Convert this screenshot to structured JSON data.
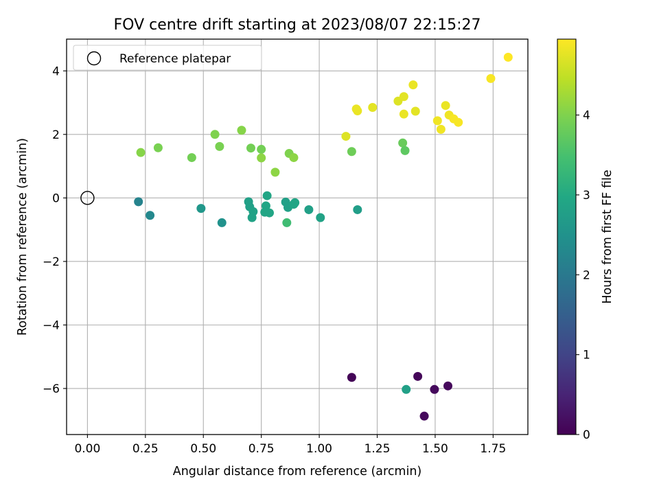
{
  "chart_data": {
    "type": "scatter",
    "title": "FOV centre drift starting at 2023/08/07 22:15:27",
    "xlabel": "Angular distance from reference (arcmin)",
    "ylabel": "Rotation from reference (arcmin)",
    "xlim": [
      -0.09,
      1.9
    ],
    "ylim": [
      -7.45,
      5.0
    ],
    "xticks": [
      "0.00",
      "0.25",
      "0.50",
      "0.75",
      "1.00",
      "1.25",
      "1.50",
      "1.75"
    ],
    "xtick_values": [
      0.0,
      0.25,
      0.5,
      0.75,
      1.0,
      1.25,
      1.5,
      1.75
    ],
    "yticks": [
      "−6",
      "−4",
      "−2",
      "0",
      "2",
      "4"
    ],
    "ytick_values": [
      -6,
      -4,
      -2,
      0,
      2,
      4
    ],
    "grid": true,
    "legend": {
      "placement": "top-left",
      "label": "Reference platepar"
    },
    "reference_point": {
      "x": 0.0,
      "y": 0.0
    },
    "colorbar": {
      "label": "Hours from first FF file",
      "colormap": "viridis",
      "range": [
        0,
        4.95
      ],
      "ticks": [
        "0",
        "1",
        "2",
        "3",
        "4"
      ],
      "tick_values": [
        0,
        1,
        2,
        3,
        4
      ]
    },
    "points": [
      {
        "x": 1.14,
        "y": -5.65,
        "t": 0.05
      },
      {
        "x": 1.425,
        "y": -5.62,
        "t": 0.08
      },
      {
        "x": 1.555,
        "y": -5.92,
        "t": 0.1
      },
      {
        "x": 1.497,
        "y": -6.03,
        "t": 0.12
      },
      {
        "x": 1.453,
        "y": -6.87,
        "t": 0.12
      },
      {
        "x": 1.375,
        "y": -6.03,
        "t": 2.8
      },
      {
        "x": 0.22,
        "y": -0.12,
        "t": 2.2
      },
      {
        "x": 0.27,
        "y": -0.55,
        "t": 2.3
      },
      {
        "x": 0.49,
        "y": -0.33,
        "t": 2.6
      },
      {
        "x": 0.58,
        "y": -0.78,
        "t": 2.5
      },
      {
        "x": 0.695,
        "y": -0.12,
        "t": 2.8
      },
      {
        "x": 0.7,
        "y": -0.28,
        "t": 2.8
      },
      {
        "x": 0.715,
        "y": -0.43,
        "t": 2.85
      },
      {
        "x": 0.71,
        "y": -0.62,
        "t": 2.85
      },
      {
        "x": 0.77,
        "y": -0.25,
        "t": 2.9
      },
      {
        "x": 0.765,
        "y": -0.45,
        "t": 2.9
      },
      {
        "x": 0.785,
        "y": -0.47,
        "t": 2.9
      },
      {
        "x": 0.775,
        "y": 0.07,
        "t": 2.9
      },
      {
        "x": 0.855,
        "y": -0.13,
        "t": 2.8
      },
      {
        "x": 0.865,
        "y": -0.3,
        "t": 2.8
      },
      {
        "x": 0.89,
        "y": -0.2,
        "t": 2.9
      },
      {
        "x": 0.895,
        "y": -0.15,
        "t": 2.9
      },
      {
        "x": 0.86,
        "y": -0.78,
        "t": 3.4
      },
      {
        "x": 0.955,
        "y": -0.37,
        "t": 2.8
      },
      {
        "x": 1.005,
        "y": -0.62,
        "t": 2.85
      },
      {
        "x": 1.165,
        "y": -0.37,
        "t": 2.75
      },
      {
        "x": 0.23,
        "y": 1.43,
        "t": 4.05
      },
      {
        "x": 0.305,
        "y": 1.58,
        "t": 3.95
      },
      {
        "x": 0.45,
        "y": 1.27,
        "t": 3.9
      },
      {
        "x": 0.55,
        "y": 2.0,
        "t": 4.0
      },
      {
        "x": 0.57,
        "y": 1.62,
        "t": 3.95
      },
      {
        "x": 0.665,
        "y": 2.13,
        "t": 4.05
      },
      {
        "x": 0.705,
        "y": 1.57,
        "t": 3.9
      },
      {
        "x": 0.75,
        "y": 1.53,
        "t": 3.9
      },
      {
        "x": 0.75,
        "y": 1.26,
        "t": 4.1
      },
      {
        "x": 0.81,
        "y": 0.81,
        "t": 4.1
      },
      {
        "x": 0.87,
        "y": 1.4,
        "t": 4.0
      },
      {
        "x": 0.89,
        "y": 1.27,
        "t": 4.1
      },
      {
        "x": 1.14,
        "y": 1.46,
        "t": 3.85
      },
      {
        "x": 1.36,
        "y": 1.73,
        "t": 3.8
      },
      {
        "x": 1.37,
        "y": 1.49,
        "t": 3.7
      },
      {
        "x": 1.115,
        "y": 1.94,
        "t": 4.7
      },
      {
        "x": 1.16,
        "y": 2.8,
        "t": 4.8
      },
      {
        "x": 1.165,
        "y": 2.74,
        "t": 4.8
      },
      {
        "x": 1.23,
        "y": 2.85,
        "t": 4.75
      },
      {
        "x": 1.34,
        "y": 3.05,
        "t": 4.7
      },
      {
        "x": 1.365,
        "y": 3.19,
        "t": 4.75
      },
      {
        "x": 1.365,
        "y": 2.64,
        "t": 4.8
      },
      {
        "x": 1.405,
        "y": 3.56,
        "t": 4.8
      },
      {
        "x": 1.415,
        "y": 2.73,
        "t": 4.75
      },
      {
        "x": 1.51,
        "y": 2.43,
        "t": 4.85
      },
      {
        "x": 1.525,
        "y": 2.16,
        "t": 4.85
      },
      {
        "x": 1.545,
        "y": 2.91,
        "t": 4.8
      },
      {
        "x": 1.56,
        "y": 2.61,
        "t": 4.85
      },
      {
        "x": 1.58,
        "y": 2.49,
        "t": 4.9
      },
      {
        "x": 1.6,
        "y": 2.38,
        "t": 4.9
      },
      {
        "x": 1.74,
        "y": 3.76,
        "t": 4.9
      },
      {
        "x": 1.815,
        "y": 4.43,
        "t": 4.95
      }
    ]
  }
}
